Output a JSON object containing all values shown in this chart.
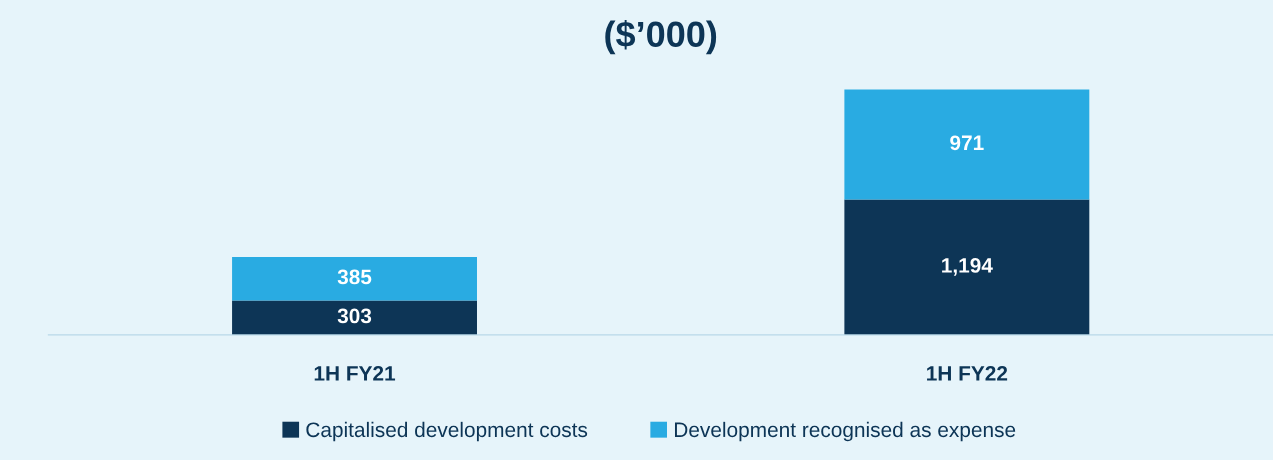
{
  "chart_data": {
    "type": "bar",
    "title": "($’000)",
    "categories": [
      "1H FY21",
      "1H FY22"
    ],
    "stacked": true,
    "data_labels": true,
    "legend": "bottom",
    "grid": false,
    "tick_labels": "x",
    "series": [
      {
        "name": "Capitalised development costs",
        "color": "#0d3556",
        "values": [
          303,
          1194
        ],
        "value_labels": [
          "303",
          "1,194"
        ]
      },
      {
        "name": "Development recognised as expense",
        "color": "#29abe2",
        "values": [
          385,
          971
        ],
        "value_labels": [
          "385",
          "971"
        ]
      }
    ]
  }
}
